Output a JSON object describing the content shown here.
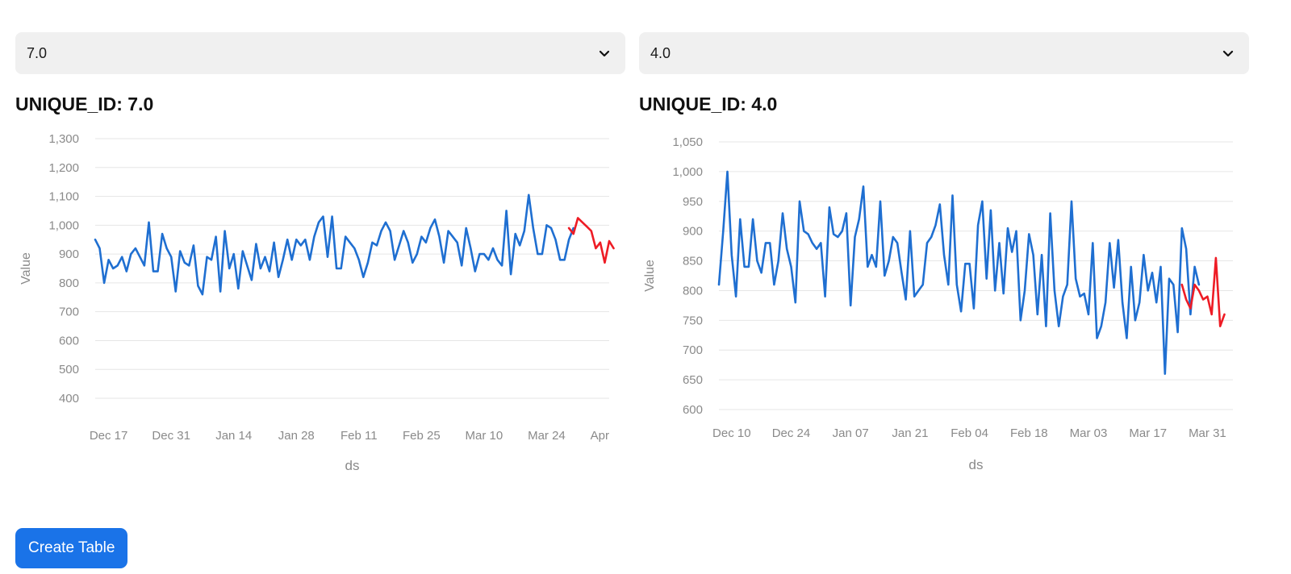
{
  "panels": [
    {
      "select_value": "7.0",
      "title": "UNIQUE_ID: 7.0"
    },
    {
      "select_value": "4.0",
      "title": "UNIQUE_ID: 4.0"
    }
  ],
  "create_table_label": "Create Table",
  "colors": {
    "history": "#1f6fd1",
    "forecast": "#ee1c25",
    "grid": "#e6e6e6",
    "axis_text": "#8a8a8a"
  },
  "chart_data": [
    {
      "type": "line",
      "title": "",
      "xlabel": "ds",
      "ylabel": "Value",
      "ylim": [
        400,
        1300
      ],
      "yticks": [
        400,
        500,
        600,
        700,
        800,
        900,
        1000,
        1100,
        1200,
        1300
      ],
      "ytick_labels": [
        "400",
        "500",
        "600",
        "700",
        "800",
        "900",
        "1,000",
        "1,100",
        "1,200",
        "1,300"
      ],
      "x_range": [
        "2023-12-14",
        "2024-04-07"
      ],
      "x_ticks": [
        "2023-12-17",
        "2023-12-31",
        "2024-01-14",
        "2024-01-28",
        "2024-02-11",
        "2024-02-25",
        "2024-03-10",
        "2024-03-24",
        "2024-04-07"
      ],
      "x_tick_labels": [
        "Dec 17",
        "Dec 31",
        "Jan 14",
        "Jan 28",
        "Feb 11",
        "Feb 25",
        "Mar 10",
        "Mar 24",
        "Apr"
      ],
      "grid": true,
      "series": [
        {
          "x_start": "2023-12-14",
          "values": [
            950,
            920,
            800,
            880,
            850,
            860,
            890,
            840,
            900,
            920,
            890,
            860,
            1010,
            840,
            840,
            970,
            920,
            890,
            770,
            910,
            870,
            860,
            930,
            790,
            760,
            890,
            880,
            960,
            770,
            980,
            850,
            900,
            780,
            910,
            860,
            810,
            935,
            850,
            890,
            840,
            940,
            820,
            880,
            950,
            880,
            950,
            930,
            950,
            880,
            960,
            1010,
            1030,
            890,
            1030,
            850,
            850,
            960,
            940,
            920,
            880,
            820,
            870,
            940,
            930,
            980,
            1010,
            980,
            880,
            930,
            980,
            940,
            870,
            900,
            960,
            940,
            990,
            1020,
            960,
            870,
            980,
            960,
            940,
            860,
            990,
            920,
            840,
            900,
            900,
            880,
            920,
            880,
            860,
            1050,
            830,
            970,
            930,
            980,
            1105,
            990,
            900,
            900,
            1000,
            990,
            950,
            880,
            880,
            950,
            990
          ]
        },
        {
          "x_start": "2024-03-29",
          "values": [
            990,
            970,
            1025,
            1010,
            995,
            980,
            920,
            940,
            870,
            945,
            920
          ]
        }
      ]
    },
    {
      "type": "line",
      "title": "",
      "xlabel": "ds",
      "ylabel": "Value",
      "ylim": [
        600,
        1050
      ],
      "yticks": [
        600,
        650,
        700,
        750,
        800,
        850,
        900,
        950,
        1000,
        1050
      ],
      "ytick_labels": [
        "600",
        "650",
        "700",
        "750",
        "800",
        "850",
        "900",
        "950",
        "1,000",
        "1,050"
      ],
      "x_range": [
        "2023-12-07",
        "2024-04-06"
      ],
      "x_ticks": [
        "2023-12-10",
        "2023-12-24",
        "2024-01-07",
        "2024-01-21",
        "2024-02-04",
        "2024-02-18",
        "2024-03-03",
        "2024-03-17",
        "2024-03-31"
      ],
      "x_tick_labels": [
        "Dec 10",
        "Dec 24",
        "Jan 07",
        "Jan 21",
        "Feb 04",
        "Feb 18",
        "Mar 03",
        "Mar 17",
        "Mar 31"
      ],
      "grid": true,
      "series": [
        {
          "x_start": "2023-12-07",
          "values": [
            810,
            900,
            1000,
            860,
            790,
            920,
            840,
            840,
            920,
            850,
            830,
            880,
            880,
            810,
            850,
            930,
            870,
            840,
            780,
            950,
            900,
            895,
            880,
            870,
            880,
            790,
            940,
            895,
            890,
            900,
            930,
            775,
            890,
            920,
            975,
            840,
            860,
            840,
            950,
            825,
            850,
            890,
            880,
            830,
            785,
            900,
            790,
            800,
            810,
            880,
            890,
            910,
            945,
            860,
            810,
            960,
            810,
            765,
            845,
            845,
            770,
            910,
            950,
            820,
            935,
            800,
            880,
            795,
            905,
            865,
            900,
            750,
            800,
            895,
            860,
            760,
            860,
            740,
            930,
            800,
            740,
            790,
            810,
            950,
            820,
            790,
            795,
            760,
            880,
            720,
            740,
            780,
            880,
            805,
            885,
            780,
            720,
            840,
            750,
            780,
            860,
            800,
            830,
            780,
            840,
            660,
            820,
            810,
            730,
            905,
            870,
            760,
            840,
            810
          ]
        },
        {
          "x_start": "2024-03-25",
          "values": [
            810,
            785,
            770,
            810,
            800,
            785,
            790,
            760,
            855,
            740,
            760
          ]
        }
      ]
    }
  ]
}
